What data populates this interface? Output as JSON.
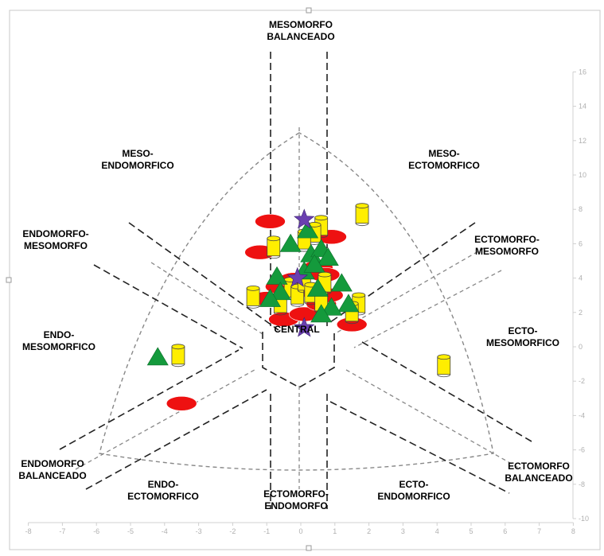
{
  "chart_data": {
    "type": "scatter",
    "title": "",
    "xlabel": "",
    "ylabel": "",
    "xlim": [
      -8,
      8
    ],
    "ylim": [
      -10,
      16
    ],
    "x_ticks": [
      "-8",
      "-7",
      "-6",
      "-5",
      "-4",
      "-3",
      "-2",
      "-1",
      "0",
      "1",
      "2",
      "3",
      "4",
      "5",
      "6",
      "7",
      "8"
    ],
    "y_ticks": [
      "16",
      "14",
      "12",
      "10",
      "8",
      "6",
      "4",
      "2",
      "0",
      "-2",
      "-4",
      "-6",
      "-8",
      "-10"
    ],
    "region_labels": [
      {
        "name": "mesomorfo-balanceado",
        "lines": [
          "MESOMORFO",
          "BALANCEADO"
        ]
      },
      {
        "name": "meso-endomorfico",
        "lines": [
          "MESO-",
          "ENDOMORFICO"
        ]
      },
      {
        "name": "meso-ectomorfico",
        "lines": [
          "MESO-",
          "ECTOMORFICO"
        ]
      },
      {
        "name": "endomorfo-mesomorfo",
        "lines": [
          "ENDOMORFO-",
          "MESOMORFO"
        ]
      },
      {
        "name": "ectomorfo-mesomorfo",
        "lines": [
          "ECTOMORFO-",
          "MESOMORFO"
        ]
      },
      {
        "name": "endo-mesomorfico",
        "lines": [
          "ENDO-",
          "MESOMORFICO"
        ]
      },
      {
        "name": "ecto-mesomorfico",
        "lines": [
          "ECTO-",
          "MESOMORFICO"
        ]
      },
      {
        "name": "central",
        "lines": [
          "CENTRAL"
        ]
      },
      {
        "name": "endomorfo-balanceado",
        "lines": [
          "ENDOMORFO",
          "BALANCEADO"
        ]
      },
      {
        "name": "ectomorfo-balanceado",
        "lines": [
          "ECTOMORFO",
          "BALANCEADO"
        ]
      },
      {
        "name": "endo-ectomorfico",
        "lines": [
          "ENDO-",
          "ECTOMORFICO"
        ]
      },
      {
        "name": "ectomorfo-endomorfo",
        "lines": [
          "ECTOMORFO-",
          "ENDOMORFO"
        ]
      },
      {
        "name": "ecto-endomorfico",
        "lines": [
          "ECTO-",
          "ENDOMORFICO"
        ]
      }
    ],
    "series": [
      {
        "marker": "ellipse",
        "color": "#ee1111",
        "points": [
          {
            "x": -0.9,
            "y": 7.3
          },
          {
            "x": -1.2,
            "y": 5.5
          },
          {
            "x": -1,
            "y": 2.8
          },
          {
            "x": -0.6,
            "y": 3.5
          },
          {
            "x": -0.2,
            "y": 3.9
          },
          {
            "x": 0.2,
            "y": 3.3
          },
          {
            "x": 0.5,
            "y": 4.6
          },
          {
            "x": 0.7,
            "y": 4.2
          },
          {
            "x": -0.5,
            "y": 1.6
          },
          {
            "x": 0.1,
            "y": 1.9
          },
          {
            "x": 0.6,
            "y": 2.5
          },
          {
            "x": 1.5,
            "y": 1.3
          },
          {
            "x": 0.8,
            "y": 3
          },
          {
            "x": 0.9,
            "y": 6.4
          },
          {
            "x": -3.5,
            "y": -3.3
          }
        ]
      },
      {
        "marker": "cylinder",
        "color": "#ffee00",
        "points": [
          {
            "x": -0.8,
            "y": 5.8
          },
          {
            "x": 0.6,
            "y": 7
          },
          {
            "x": 0.4,
            "y": 6.6
          },
          {
            "x": 0.1,
            "y": 6.2
          },
          {
            "x": 1.8,
            "y": 7.7
          },
          {
            "x": -1.4,
            "y": 2.9
          },
          {
            "x": -0.3,
            "y": 3.4
          },
          {
            "x": -0.1,
            "y": 3
          },
          {
            "x": 0.1,
            "y": 3.8
          },
          {
            "x": 0.3,
            "y": 3.1
          },
          {
            "x": 0.7,
            "y": 3.7
          },
          {
            "x": 0.6,
            "y": 2.6
          },
          {
            "x": 1.7,
            "y": 2.5
          },
          {
            "x": 1.5,
            "y": 2
          },
          {
            "x": -0.6,
            "y": 2.5
          },
          {
            "x": -3.6,
            "y": -0.5
          },
          {
            "x": 4.2,
            "y": -1.1
          }
        ]
      },
      {
        "marker": "triangle",
        "color": "#149a3c",
        "points": [
          {
            "x": -0.3,
            "y": 6
          },
          {
            "x": 0.2,
            "y": 6.8
          },
          {
            "x": 0.3,
            "y": 5.4
          },
          {
            "x": 0.6,
            "y": 5.7
          },
          {
            "x": 0.8,
            "y": 5.2
          },
          {
            "x": -0.7,
            "y": 4.1
          },
          {
            "x": 0.1,
            "y": 4.4
          },
          {
            "x": 0.4,
            "y": 4.8
          },
          {
            "x": 1.2,
            "y": 3.7
          },
          {
            "x": -0.6,
            "y": 3.2
          },
          {
            "x": 0.5,
            "y": 3.4
          },
          {
            "x": -0.9,
            "y": 2.8
          },
          {
            "x": 1.4,
            "y": 2.5
          },
          {
            "x": 0.9,
            "y": 2.3
          },
          {
            "x": 0.6,
            "y": 1.9
          },
          {
            "x": -4.2,
            "y": -0.6
          }
        ]
      },
      {
        "marker": "star",
        "color": "#6a3fb0",
        "points": [
          {
            "x": 0.1,
            "y": 7.4
          },
          {
            "x": -0.1,
            "y": 4
          },
          {
            "x": 0.1,
            "y": 1.1
          }
        ]
      }
    ]
  }
}
